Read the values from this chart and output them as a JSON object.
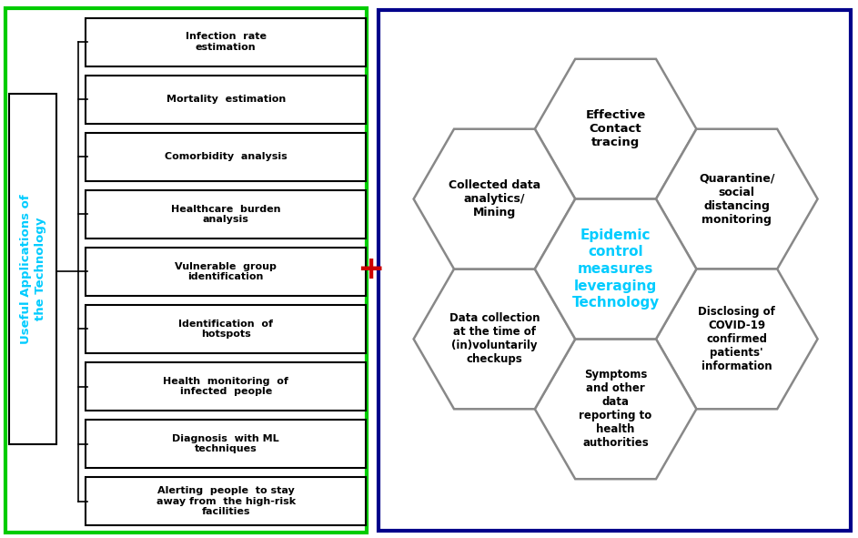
{
  "left_panel_border_color": "#00cc00",
  "right_panel_border_color": "#00008B",
  "left_label": "Useful Applications of\nthe Technology",
  "left_label_color": "#00ccff",
  "boxes": [
    "Infection  rate\nestimation",
    "Mortality  estimation",
    "Comorbidity  analysis",
    "Healthcare  burden\nanalysis",
    "Vulnerable  group\nidentification",
    "Identification  of\nhotspots",
    "Health  monitoring  of\ninfected  people",
    "Diagnosis  with ML\ntechniques",
    "Alerting  people  to stay\naway from  the high-risk\nfacilities"
  ],
  "plus_color": "#cc0000",
  "center_hex_text": "Epidemic\ncontrol\nmeasures\nleveraging\nTechnology",
  "center_hex_color": "#00ccff",
  "hex_labels": {
    "top": "Effective\nContact\ntracing",
    "top_right": "Quarantine/\nsocial\ndistancing\nmonitoring",
    "bot_right": "Disclosing of\nCOVID-19\nconfirmed\npatients'\ninformation",
    "bottom": "Symptoms\nand other\ndata\nreporting to\nhealth\nauthorities",
    "bot_left": "Data collection\nat the time of\n(in)voluntarily\ncheckups",
    "top_left": "Collected data\nanalytics/\nMining"
  },
  "connector_positions": [
    "top_right_gap",
    "bot_right_gap",
    "bot_left_gap"
  ],
  "hex_outline_color": "#888888",
  "hex_face_color": "#ffffff",
  "connector_color": "#cccccc"
}
